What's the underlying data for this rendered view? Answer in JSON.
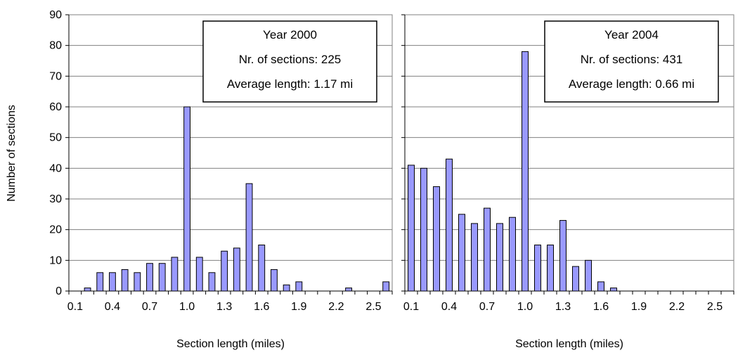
{
  "colors": {
    "bar_fill": "#9999ff",
    "bar_stroke": "#000000",
    "grid": "#808080",
    "axis": "#000000"
  },
  "shared": {
    "ylabel": "Number of sections",
    "ylim": [
      0,
      90
    ],
    "yticks": [
      0,
      10,
      20,
      30,
      40,
      50,
      60,
      70,
      80,
      90
    ],
    "xticks": [
      "0.1",
      "0.4",
      "0.7",
      "1.0",
      "1.3",
      "1.6",
      "1.9",
      "2.2",
      "2.5"
    ]
  },
  "chart_data": [
    {
      "type": "bar",
      "xlabel": "Section length (miles)",
      "ylabel": "Number of sections",
      "ylim": [
        0,
        90
      ],
      "grid": true,
      "legend": "none",
      "annotation": [
        "Year 2000",
        "Nr. of sections: 225",
        "Average length: 1.17 mi"
      ],
      "annotation_position": "top-right",
      "categories": [
        0.1,
        0.2,
        0.3,
        0.4,
        0.5,
        0.6,
        0.7,
        0.8,
        0.9,
        1.0,
        1.1,
        1.2,
        1.3,
        1.4,
        1.5,
        1.6,
        1.7,
        1.8,
        1.9,
        2.0,
        2.1,
        2.2,
        2.3,
        2.4,
        2.5,
        2.6
      ],
      "values": [
        0,
        1,
        6,
        6,
        7,
        6,
        9,
        9,
        11,
        60,
        11,
        6,
        13,
        14,
        35,
        15,
        7,
        2,
        3,
        0,
        0,
        0,
        1,
        0,
        0,
        3
      ]
    },
    {
      "type": "bar",
      "xlabel": "Section length (miles)",
      "ylabel": "",
      "ylim": [
        0,
        90
      ],
      "grid": true,
      "legend": "none",
      "annotation": [
        "Year 2004",
        "Nr. of sections: 431",
        "Average length: 0.66 mi"
      ],
      "annotation_position": "top-right",
      "categories": [
        0.1,
        0.2,
        0.3,
        0.4,
        0.5,
        0.6,
        0.7,
        0.8,
        0.9,
        1.0,
        1.1,
        1.2,
        1.3,
        1.4,
        1.5,
        1.6,
        1.7,
        1.8,
        1.9,
        2.0,
        2.1,
        2.2,
        2.3,
        2.4,
        2.5,
        2.6
      ],
      "values": [
        41,
        40,
        34,
        43,
        25,
        22,
        27,
        22,
        24,
        78,
        15,
        15,
        23,
        8,
        10,
        3,
        1,
        0,
        0,
        0,
        0,
        0,
        0,
        0,
        0,
        0
      ]
    }
  ]
}
